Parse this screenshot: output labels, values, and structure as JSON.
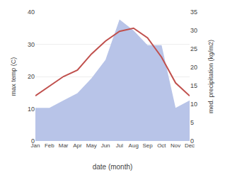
{
  "chart_data": {
    "type": "line",
    "xlabel": "date (month)",
    "ylabel": "max temp (C)",
    "y2label": "med. precipitation (kg/m2)",
    "categories": [
      "Jan",
      "Feb",
      "Mar",
      "Apr",
      "May",
      "Jun",
      "Jul",
      "Aug",
      "Sep",
      "Oct",
      "Nov",
      "Dec"
    ],
    "series": [
      {
        "type": "area",
        "axis": "y2",
        "color": "#b8c4e8",
        "values": [
          9,
          9,
          11,
          13,
          17,
          22,
          33,
          30,
          26,
          26,
          9,
          11
        ]
      },
      {
        "type": "line",
        "color": "#c0504d",
        "values": [
          14,
          17,
          20,
          22,
          27,
          31,
          34,
          35,
          32,
          26,
          18,
          14
        ]
      }
    ],
    "ylim": [
      0,
      40
    ],
    "yticks": [
      0,
      10,
      20,
      30,
      40
    ],
    "y2lim": [
      0,
      35
    ],
    "y2ticks": [
      0,
      5,
      10,
      15,
      20,
      25,
      30,
      35
    ],
    "grid": true
  }
}
